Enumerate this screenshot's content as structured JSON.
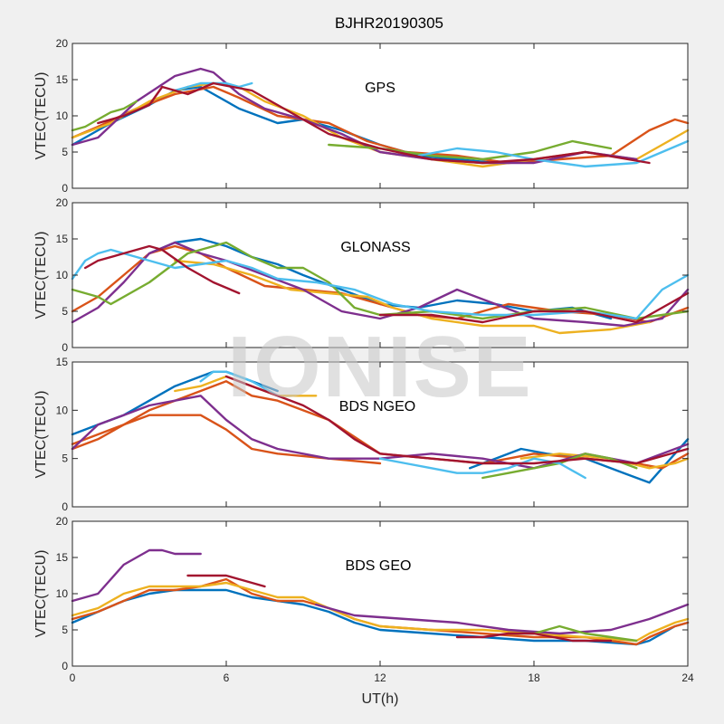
{
  "figure": {
    "title": "BJHR20190305",
    "xlabel": "UT(h)",
    "watermark": "IONISE"
  },
  "chart_data": [
    {
      "type": "line",
      "annotation": "GPS",
      "ylabel": "VTEC(TECU)",
      "xlim": [
        0,
        24
      ],
      "ylim": [
        0,
        20
      ],
      "xticks": [
        0,
        6,
        12,
        18,
        24
      ],
      "yticks": [
        0,
        5,
        10,
        15,
        20
      ],
      "series": [
        {
          "color": "#0072BD",
          "x": [
            0,
            1.5,
            3,
            4,
            5,
            6.5,
            8,
            9,
            10.5,
            12,
            13.5,
            15,
            16.5
          ],
          "y": [
            6,
            9,
            11.5,
            13.5,
            14,
            11,
            9,
            9.5,
            8,
            6,
            4.5,
            4,
            3.5
          ]
        },
        {
          "color": "#D95319",
          "x": [
            0,
            1,
            2.5,
            4,
            5.5,
            6.5,
            8,
            10,
            11.5,
            13,
            15,
            17,
            19,
            21,
            22.5,
            23.5,
            24
          ],
          "y": [
            7,
            8.5,
            11,
            13,
            14,
            12.5,
            10,
            9,
            6.5,
            5,
            4.5,
            3.5,
            4,
            4.5,
            8,
            9.5,
            9
          ]
        },
        {
          "color": "#EDB120",
          "x": [
            0,
            1.5,
            3,
            4.5,
            5.5,
            6.5,
            7.5,
            9,
            10.5,
            12,
            14,
            16,
            18,
            20,
            22,
            24
          ],
          "y": [
            7,
            9,
            12,
            14,
            14.5,
            14,
            12,
            10,
            7,
            5,
            4,
            3,
            4,
            5,
            4,
            8
          ]
        },
        {
          "color": "#7E2F8E",
          "x": [
            0,
            1,
            2.5,
            4,
            5,
            5.5,
            6.5,
            7.5,
            9,
            10.5,
            12,
            14,
            16,
            18,
            20,
            22
          ],
          "y": [
            6,
            7,
            12,
            15.5,
            16.5,
            16,
            13,
            11,
            9.5,
            7.5,
            5,
            4,
            3.5,
            3.5,
            5,
            4
          ]
        },
        {
          "color": "#77AC30",
          "x": [
            0,
            0.5,
            1,
            1.5,
            2,
            2.5
          ],
          "y": [
            8,
            8.5,
            9.5,
            10.5,
            11,
            12
          ]
        },
        {
          "color": "#77AC30",
          "x": [
            10,
            12,
            14,
            16,
            18,
            19.5,
            21
          ],
          "y": [
            6,
            5.5,
            4.5,
            4,
            5,
            6.5,
            5.5
          ]
        },
        {
          "color": "#4DBEEE",
          "x": [
            4,
            5,
            6,
            6.5,
            7
          ],
          "y": [
            13.5,
            14.5,
            14.5,
            14,
            14.5
          ]
        },
        {
          "color": "#4DBEEE",
          "x": [
            13.5,
            15,
            16.5,
            18,
            20,
            22,
            24
          ],
          "y": [
            4.5,
            5.5,
            5,
            4,
            3,
            3.5,
            6.5
          ]
        },
        {
          "color": "#A2142F",
          "x": [
            1,
            2,
            3,
            3.5,
            4.5,
            5.5,
            7,
            8.5,
            10,
            12,
            14,
            16,
            18,
            20,
            22.5
          ],
          "y": [
            9,
            10,
            11.5,
            14,
            13,
            14.5,
            13.5,
            10.5,
            7.5,
            5.5,
            4,
            3.5,
            4,
            5,
            3.5
          ]
        }
      ]
    },
    {
      "type": "line",
      "annotation": "GLONASS",
      "ylabel": "VTEC(TECU)",
      "xlim": [
        0,
        24
      ],
      "ylim": [
        0,
        20
      ],
      "xticks": [
        0,
        6,
        12,
        18,
        24
      ],
      "yticks": [
        0,
        5,
        10,
        15,
        20
      ],
      "series": [
        {
          "color": "#0072BD",
          "x": [
            3,
            4,
            5,
            6,
            7,
            8,
            9,
            10.5,
            12,
            13.5,
            15,
            16.5,
            18,
            19.5,
            21
          ],
          "y": [
            13,
            14.5,
            15,
            14,
            12.5,
            11.5,
            10,
            8,
            6,
            5.5,
            6.5,
            6,
            5,
            5.5,
            4
          ]
        },
        {
          "color": "#D95319",
          "x": [
            0,
            1,
            2,
            3,
            4,
            5,
            6,
            7.5,
            9,
            10.5,
            12,
            13.5,
            15,
            17,
            19,
            21,
            22.5,
            24
          ],
          "y": [
            5,
            7,
            10,
            13,
            14,
            13,
            11,
            8.5,
            8,
            7.5,
            6,
            4.5,
            4,
            6,
            5,
            4.5,
            3.5,
            5.5
          ]
        },
        {
          "color": "#EDB120",
          "x": [
            4,
            5.5,
            7,
            8.5,
            10,
            11.5,
            12.5,
            14,
            16,
            18,
            19,
            21,
            22.5
          ],
          "y": [
            12,
            11.5,
            10,
            8,
            7.5,
            7,
            5.5,
            4,
            3,
            3,
            2,
            2.5,
            3.5
          ]
        },
        {
          "color": "#7E2F8E",
          "x": [
            0,
            1,
            2,
            3,
            4,
            5,
            6,
            7.5,
            9,
            10.5,
            12,
            13.5,
            15,
            16.5,
            18,
            20,
            21.5,
            23,
            24
          ],
          "y": [
            3.5,
            5.5,
            9,
            13,
            14.5,
            13,
            12,
            10,
            8,
            5,
            4,
            5.5,
            8,
            6,
            4,
            3.5,
            3,
            4,
            8
          ]
        },
        {
          "color": "#77AC30",
          "x": [
            0,
            0.5,
            1,
            1.5,
            3,
            4.5,
            6,
            7,
            8,
            9,
            10,
            11,
            12,
            14,
            16,
            18,
            20,
            22,
            24
          ],
          "y": [
            8,
            7.5,
            7,
            6,
            9,
            13,
            14.5,
            12.5,
            11,
            11,
            9,
            5.5,
            4.5,
            5,
            4,
            5,
            5.5,
            4,
            5
          ]
        },
        {
          "color": "#4DBEEE",
          "x": [
            0,
            0.5,
            1,
            1.5,
            2,
            3,
            4,
            5,
            6,
            7,
            8,
            9.5,
            11,
            12.5,
            14,
            16,
            18,
            20,
            22,
            23,
            24
          ],
          "y": [
            9.5,
            12,
            13,
            13.5,
            13,
            12,
            11,
            11.5,
            12,
            11,
            9.5,
            9,
            8,
            6,
            5,
            4.5,
            4.5,
            5,
            4,
            8,
            10
          ]
        },
        {
          "color": "#A2142F",
          "x": [
            0.5,
            1,
            2,
            3,
            3.5,
            4.5,
            5.5,
            6.5
          ],
          "y": [
            11,
            12,
            13,
            14,
            13.5,
            11,
            9,
            7.5
          ]
        },
        {
          "color": "#A2142F",
          "x": [
            12,
            14,
            16,
            18,
            20,
            22,
            24
          ],
          "y": [
            4.5,
            4.5,
            3.5,
            5,
            5,
            3.5,
            7.5
          ]
        }
      ]
    },
    {
      "type": "line",
      "annotation": "BDS NGEO",
      "ylabel": "VTEC(TECU)",
      "xlim": [
        0,
        24
      ],
      "ylim": [
        0,
        15
      ],
      "xticks": [
        0,
        6,
        12,
        18,
        24
      ],
      "yticks": [
        0,
        5,
        10,
        15
      ],
      "series": [
        {
          "color": "#0072BD",
          "x": [
            0,
            1,
            2,
            3,
            4,
            5,
            5.5,
            6,
            7,
            8
          ],
          "y": [
            7.5,
            8.5,
            9.5,
            11,
            12.5,
            13.5,
            14,
            14,
            13,
            12
          ]
        },
        {
          "color": "#0072BD",
          "x": [
            15.5,
            16.5,
            17.5,
            18.5,
            20,
            21.5,
            22.5,
            23.5,
            24
          ],
          "y": [
            4,
            5,
            6,
            5.5,
            5,
            3.5,
            2.5,
            5.5,
            7
          ]
        },
        {
          "color": "#D95319",
          "x": [
            0,
            1,
            2,
            3,
            4,
            5,
            6,
            7,
            8,
            10,
            12,
            14,
            16,
            17,
            18,
            20,
            22,
            23,
            24
          ],
          "y": [
            6,
            7,
            8.5,
            10,
            11,
            12,
            13,
            11.5,
            11,
            9,
            5.5,
            5,
            4.5,
            5,
            5.5,
            5,
            4.5,
            4,
            5.5
          ]
        },
        {
          "color": "#D95319",
          "x": [
            0,
            1,
            2,
            3,
            4,
            5,
            6,
            7,
            8,
            10,
            12
          ],
          "y": [
            6.5,
            7.5,
            8.5,
            9.5,
            9.5,
            9.5,
            8,
            6,
            5.5,
            5,
            4.5
          ]
        },
        {
          "color": "#EDB120",
          "x": [
            4,
            5,
            6,
            7,
            8,
            9,
            9.5
          ],
          "y": [
            12,
            12.5,
            13.5,
            12.5,
            11.5,
            11.5,
            11.5
          ]
        },
        {
          "color": "#EDB120",
          "x": [
            17.5,
            19,
            21,
            22.5,
            23.5,
            24
          ],
          "y": [
            5,
            5.5,
            5,
            4,
            4.5,
            5
          ]
        },
        {
          "color": "#7E2F8E",
          "x": [
            0,
            1,
            2,
            3,
            4,
            5,
            6,
            7,
            8,
            10,
            12,
            14,
            16,
            18,
            20,
            22,
            24
          ],
          "y": [
            6,
            8.5,
            9.5,
            10.5,
            11,
            11.5,
            9,
            7,
            6,
            5,
            5,
            5.5,
            5,
            4,
            5.5,
            4.5,
            6.5
          ]
        },
        {
          "color": "#77AC30",
          "x": [
            16,
            17,
            18,
            19,
            20,
            21,
            22
          ],
          "y": [
            3,
            3.5,
            4,
            4.5,
            5.5,
            5,
            4
          ]
        },
        {
          "color": "#4DBEEE",
          "x": [
            5,
            5.5,
            6,
            7,
            8
          ],
          "y": [
            13,
            14,
            14,
            13,
            11.5
          ]
        },
        {
          "color": "#4DBEEE",
          "x": [
            12,
            13,
            14,
            15,
            16,
            17,
            18,
            19,
            20
          ],
          "y": [
            5,
            4.5,
            4,
            3.5,
            3.5,
            4,
            5,
            4.5,
            3
          ]
        },
        {
          "color": "#A2142F",
          "x": [
            6,
            7,
            8,
            9,
            10,
            11,
            12,
            14,
            16,
            18,
            20,
            22,
            24
          ],
          "y": [
            13.5,
            12.5,
            11.5,
            10.5,
            9,
            7,
            5.5,
            5,
            4.5,
            4.5,
            5,
            4.5,
            6
          ]
        }
      ]
    },
    {
      "type": "line",
      "annotation": "BDS GEO",
      "ylabel": "VTEC(TECU)",
      "xlim": [
        0,
        24
      ],
      "ylim": [
        0,
        20
      ],
      "xticks": [
        0,
        6,
        12,
        18,
        24
      ],
      "yticks": [
        0,
        5,
        10,
        15,
        20
      ],
      "series": [
        {
          "color": "#0072BD",
          "x": [
            0,
            1,
            2,
            3,
            4,
            5,
            6,
            7,
            8,
            9,
            10,
            11,
            12,
            14,
            16,
            18,
            20,
            22,
            22.5,
            23.5,
            24
          ],
          "y": [
            6,
            7.5,
            9,
            10,
            10.5,
            10.5,
            10.5,
            9.5,
            9,
            8.5,
            7.5,
            6,
            5,
            4.5,
            4,
            3.5,
            3.5,
            3,
            3.5,
            5.5,
            6
          ]
        },
        {
          "color": "#D95319",
          "x": [
            0,
            1,
            2,
            3,
            4,
            5,
            6,
            7,
            8,
            9,
            10,
            11,
            12,
            14,
            16,
            18,
            20,
            22,
            22.5,
            23.5,
            24
          ],
          "y": [
            6.5,
            7.5,
            9,
            10.5,
            10.5,
            11,
            12,
            10,
            9,
            9,
            8,
            6.5,
            5.5,
            5,
            4.5,
            4,
            4,
            3,
            4,
            5.5,
            6
          ]
        },
        {
          "color": "#EDB120",
          "x": [
            0,
            1,
            2,
            3,
            4,
            5,
            6,
            7,
            8,
            9,
            10,
            11,
            12,
            14,
            16,
            18,
            20,
            22,
            22.5,
            23.5,
            24
          ],
          "y": [
            7,
            8,
            10,
            11,
            11,
            11,
            11.5,
            10.5,
            9.5,
            9.5,
            8,
            6.5,
            5.5,
            5,
            5,
            4.5,
            4,
            3.5,
            4.5,
            6,
            6.5
          ]
        },
        {
          "color": "#7E2F8E",
          "x": [
            0,
            0.5,
            1,
            1.5,
            2,
            2.5,
            3,
            3.5,
            4,
            4.5,
            5
          ],
          "y": [
            9,
            9.5,
            10,
            12,
            14,
            15,
            16,
            16,
            15.5,
            15.5,
            15.5
          ]
        },
        {
          "color": "#7E2F8E",
          "x": [
            9.5,
            11,
            13,
            15,
            17,
            19,
            21,
            22.5,
            24
          ],
          "y": [
            8.5,
            7,
            6.5,
            6,
            5,
            4.5,
            5,
            6.5,
            8.5
          ]
        },
        {
          "color": "#77AC30",
          "x": [
            17,
            18,
            19,
            20,
            21,
            22
          ],
          "y": [
            4.5,
            4.5,
            5.5,
            4.5,
            4,
            3.5
          ]
        },
        {
          "color": "#A2142F",
          "x": [
            4.5,
            5.5,
            6,
            6.5,
            7.5
          ],
          "y": [
            12.5,
            12.5,
            12.5,
            12,
            11
          ]
        },
        {
          "color": "#A2142F",
          "x": [
            15,
            16,
            17,
            18,
            19.5,
            21
          ],
          "y": [
            4,
            4,
            4.5,
            4.5,
            3.5,
            3.5
          ]
        }
      ]
    }
  ]
}
